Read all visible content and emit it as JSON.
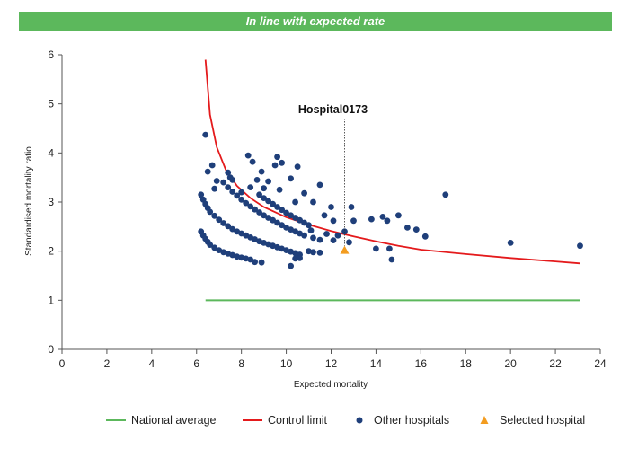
{
  "banner": {
    "text": "In line with expected rate",
    "color": "#5cb85c"
  },
  "chart_data": {
    "type": "scatter",
    "title": "",
    "xlabel": "Expected mortality",
    "ylabel": "Standardised mortality ratio",
    "xlim": [
      0,
      24
    ],
    "ylim": [
      0,
      6
    ],
    "xticks": [
      0,
      2,
      4,
      6,
      8,
      10,
      12,
      14,
      16,
      18,
      20,
      22,
      24
    ],
    "yticks": [
      0,
      1,
      2,
      3,
      4,
      5,
      6
    ],
    "grid": false,
    "legend_position": "bottom",
    "colors": {
      "national_average": "#5cb85c",
      "control_limit": "#e41a1c",
      "other_hospitals": "#1f3f7a",
      "selected_hospital": "#f39c1f"
    },
    "legend": [
      "National average",
      "Control limit",
      "Other hospitals",
      "Selected hospital"
    ],
    "national_average": {
      "x": [
        6.4,
        23.1
      ],
      "y": [
        1.0,
        1.0
      ]
    },
    "control_limit": {
      "x": [
        6.4,
        6.6,
        6.9,
        7.3,
        7.8,
        8.4,
        9.0,
        10.0,
        11.0,
        12.0,
        13.0,
        14.0,
        15.0,
        16.0,
        18.0,
        20.0,
        22.0,
        23.1
      ],
      "y": [
        5.9,
        4.78,
        4.12,
        3.66,
        3.33,
        3.08,
        2.9,
        2.69,
        2.54,
        2.41,
        2.3,
        2.2,
        2.11,
        2.03,
        1.94,
        1.86,
        1.79,
        1.75
      ]
    },
    "other_hospitals": [
      [
        6.2,
        2.4
      ],
      [
        6.3,
        2.32
      ],
      [
        6.4,
        2.25
      ],
      [
        6.5,
        2.19
      ],
      [
        6.6,
        2.13
      ],
      [
        6.8,
        2.07
      ],
      [
        7.0,
        2.02
      ],
      [
        7.2,
        1.98
      ],
      [
        7.4,
        1.95
      ],
      [
        7.6,
        1.92
      ],
      [
        7.8,
        1.89
      ],
      [
        8.0,
        1.87
      ],
      [
        8.2,
        1.85
      ],
      [
        8.4,
        1.83
      ],
      [
        6.2,
        3.15
      ],
      [
        6.3,
        3.05
      ],
      [
        6.4,
        2.96
      ],
      [
        6.5,
        2.88
      ],
      [
        6.6,
        2.8
      ],
      [
        6.8,
        2.72
      ],
      [
        7.0,
        2.64
      ],
      [
        7.2,
        2.57
      ],
      [
        7.4,
        2.51
      ],
      [
        7.6,
        2.45
      ],
      [
        7.8,
        2.4
      ],
      [
        8.0,
        2.36
      ],
      [
        8.2,
        2.32
      ],
      [
        8.4,
        2.28
      ],
      [
        8.6,
        2.24
      ],
      [
        8.8,
        2.2
      ],
      [
        9.0,
        2.17
      ],
      [
        9.2,
        2.14
      ],
      [
        9.4,
        2.11
      ],
      [
        9.6,
        2.08
      ],
      [
        9.8,
        2.05
      ],
      [
        10.0,
        2.02
      ],
      [
        10.2,
        1.99
      ],
      [
        10.4,
        1.96
      ],
      [
        10.6,
        1.93
      ],
      [
        7.2,
        3.4
      ],
      [
        7.4,
        3.3
      ],
      [
        7.6,
        3.21
      ],
      [
        7.8,
        3.13
      ],
      [
        8.0,
        3.05
      ],
      [
        8.2,
        2.98
      ],
      [
        8.4,
        2.91
      ],
      [
        8.6,
        2.85
      ],
      [
        8.8,
        2.79
      ],
      [
        9.0,
        2.73
      ],
      [
        9.2,
        2.68
      ],
      [
        9.4,
        2.63
      ],
      [
        9.6,
        2.58
      ],
      [
        9.8,
        2.53
      ],
      [
        10.0,
        2.48
      ],
      [
        10.2,
        2.44
      ],
      [
        10.4,
        2.4
      ],
      [
        10.6,
        2.36
      ],
      [
        10.8,
        2.32
      ],
      [
        8.8,
        3.15
      ],
      [
        9.0,
        3.08
      ],
      [
        9.2,
        3.02
      ],
      [
        9.4,
        2.96
      ],
      [
        9.6,
        2.9
      ],
      [
        9.8,
        2.84
      ],
      [
        10.0,
        2.78
      ],
      [
        10.2,
        2.73
      ],
      [
        10.4,
        2.68
      ],
      [
        10.6,
        2.63
      ],
      [
        10.8,
        2.58
      ],
      [
        11.0,
        2.53
      ],
      [
        6.4,
        4.37
      ],
      [
        6.5,
        3.62
      ],
      [
        6.7,
        3.75
      ],
      [
        6.9,
        3.43
      ],
      [
        7.4,
        3.6
      ],
      [
        7.6,
        3.45
      ],
      [
        8.3,
        3.95
      ],
      [
        8.5,
        3.82
      ],
      [
        8.7,
        3.45
      ],
      [
        8.9,
        3.62
      ],
      [
        9.2,
        3.42
      ],
      [
        9.5,
        3.75
      ],
      [
        9.6,
        3.92
      ],
      [
        9.8,
        3.8
      ],
      [
        10.2,
        3.48
      ],
      [
        10.5,
        3.72
      ],
      [
        10.8,
        3.18
      ],
      [
        6.8,
        3.27
      ],
      [
        7.5,
        3.5
      ],
      [
        8.0,
        3.2
      ],
      [
        8.4,
        3.3
      ],
      [
        9.0,
        3.28
      ],
      [
        9.7,
        3.25
      ],
      [
        10.4,
        3.0
      ],
      [
        11.2,
        3.0
      ],
      [
        11.5,
        3.35
      ],
      [
        11.7,
        2.73
      ],
      [
        12.0,
        2.9
      ],
      [
        12.1,
        2.62
      ],
      [
        11.1,
        2.42
      ],
      [
        11.2,
        2.27
      ],
      [
        11.5,
        2.23
      ],
      [
        11.8,
        2.35
      ],
      [
        12.1,
        2.22
      ],
      [
        12.3,
        2.32
      ],
      [
        12.6,
        2.4
      ],
      [
        12.8,
        2.18
      ],
      [
        13.0,
        2.62
      ],
      [
        11.0,
        2.0
      ],
      [
        11.2,
        1.98
      ],
      [
        11.5,
        1.97
      ],
      [
        13.8,
        2.65
      ],
      [
        14.0,
        2.05
      ],
      [
        14.3,
        2.7
      ],
      [
        14.5,
        2.62
      ],
      [
        14.6,
        2.05
      ],
      [
        14.7,
        1.83
      ],
      [
        15.0,
        2.73
      ],
      [
        15.4,
        2.48
      ],
      [
        15.8,
        2.44
      ],
      [
        16.2,
        2.3
      ],
      [
        17.1,
        3.15
      ],
      [
        20.0,
        2.17
      ],
      [
        23.1,
        2.11
      ],
      [
        8.6,
        1.78
      ],
      [
        8.9,
        1.77
      ],
      [
        10.2,
        1.7
      ],
      [
        10.4,
        1.85
      ],
      [
        10.6,
        1.86
      ],
      [
        12.9,
        2.9
      ]
    ],
    "selected_hospital": {
      "name": "Hospital0173",
      "x": 12.6,
      "y": 2.02
    }
  }
}
